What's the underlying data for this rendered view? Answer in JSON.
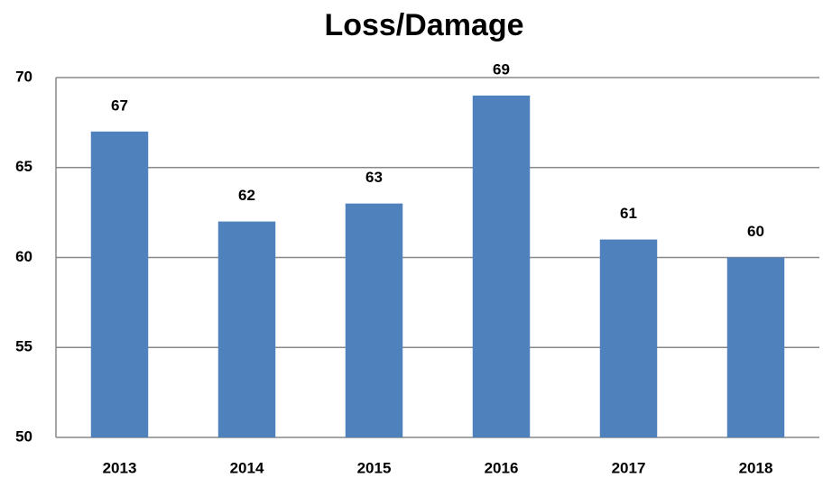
{
  "chart_data": {
    "type": "bar",
    "title": "Loss/Damage",
    "categories": [
      "2013",
      "2014",
      "2015",
      "2016",
      "2017",
      "2018"
    ],
    "values": [
      67,
      62,
      63,
      69,
      61,
      60
    ],
    "color": "#4f81bd",
    "ylim": [
      50,
      70
    ],
    "yticks": [
      50,
      55,
      60,
      65,
      70
    ],
    "grid": true,
    "data_labels": true
  }
}
